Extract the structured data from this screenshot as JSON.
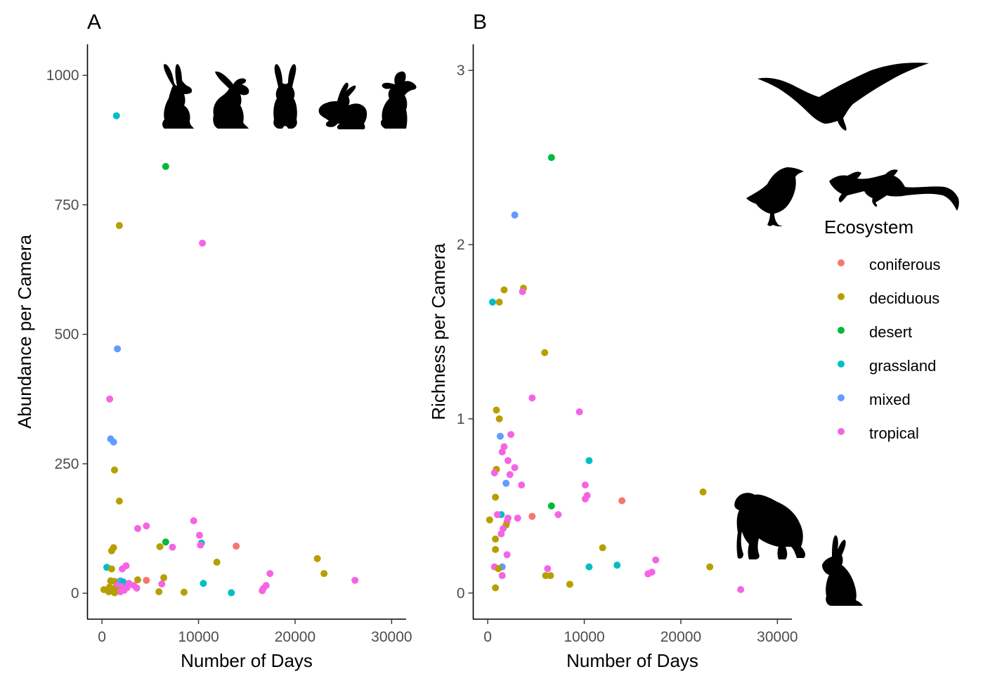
{
  "colors": {
    "coniferous": "#F8766D",
    "deciduous": "#B79F00",
    "desert": "#00BA38",
    "grassland": "#00BFC4",
    "mixed": "#619CFF",
    "tropical": "#F564E3"
  },
  "legend": {
    "title": "Ecosystem",
    "items": [
      "coniferous",
      "deciduous",
      "desert",
      "grassland",
      "mixed",
      "tropical"
    ]
  },
  "icons": {
    "panel_a": [
      "rabbit-icon",
      "rabbit-icon",
      "rabbit-icon",
      "rabbit-icon",
      "rabbit-icon"
    ],
    "panel_b": [
      "eagle-icon",
      "songbird-icon",
      "lizard-icon",
      "gorilla-icon",
      "rabbit-icon"
    ]
  },
  "chart_data": [
    {
      "type": "scatter",
      "panel": "A",
      "xlabel": "Number of Days",
      "ylabel": "Abundance per Camera",
      "xlim": [
        -1500,
        31500
      ],
      "ylim": [
        -50,
        1060
      ],
      "xticks": [
        0,
        10000,
        20000,
        30000
      ],
      "xtick_labels": [
        "0",
        "10000",
        "20000",
        "30000"
      ],
      "yticks": [
        0,
        250,
        500,
        750,
        1000
      ],
      "ytick_labels": [
        "0",
        "250",
        "500",
        "750",
        "1000"
      ],
      "grid": false,
      "points": [
        {
          "x": 1500,
          "y": 922,
          "group": "grassland"
        },
        {
          "x": 6600,
          "y": 824,
          "group": "desert"
        },
        {
          "x": 1800,
          "y": 710,
          "group": "deciduous"
        },
        {
          "x": 10400,
          "y": 676,
          "group": "tropical"
        },
        {
          "x": 1600,
          "y": 472,
          "group": "mixed"
        },
        {
          "x": 800,
          "y": 375,
          "group": "tropical"
        },
        {
          "x": 900,
          "y": 298,
          "group": "mixed"
        },
        {
          "x": 1200,
          "y": 292,
          "group": "mixed"
        },
        {
          "x": 1300,
          "y": 238,
          "group": "deciduous"
        },
        {
          "x": 1800,
          "y": 178,
          "group": "deciduous"
        },
        {
          "x": 9500,
          "y": 140,
          "group": "tropical"
        },
        {
          "x": 4600,
          "y": 130,
          "group": "tropical"
        },
        {
          "x": 3700,
          "y": 125,
          "group": "tropical"
        },
        {
          "x": 10100,
          "y": 112,
          "group": "tropical"
        },
        {
          "x": 6600,
          "y": 99,
          "group": "desert"
        },
        {
          "x": 10300,
          "y": 97,
          "group": "grassland"
        },
        {
          "x": 10200,
          "y": 93,
          "group": "tropical"
        },
        {
          "x": 13900,
          "y": 91,
          "group": "coniferous"
        },
        {
          "x": 6000,
          "y": 90,
          "group": "deciduous"
        },
        {
          "x": 7300,
          "y": 89,
          "group": "tropical"
        },
        {
          "x": 1200,
          "y": 88,
          "group": "deciduous"
        },
        {
          "x": 1000,
          "y": 82,
          "group": "deciduous"
        },
        {
          "x": 22300,
          "y": 67,
          "group": "deciduous"
        },
        {
          "x": 11900,
          "y": 60,
          "group": "deciduous"
        },
        {
          "x": 2500,
          "y": 53,
          "group": "tropical"
        },
        {
          "x": 2100,
          "y": 47,
          "group": "tropical"
        },
        {
          "x": 500,
          "y": 50,
          "group": "grassland"
        },
        {
          "x": 1000,
          "y": 47,
          "group": "deciduous"
        },
        {
          "x": 17400,
          "y": 38,
          "group": "tropical"
        },
        {
          "x": 23000,
          "y": 38,
          "group": "deciduous"
        },
        {
          "x": 6400,
          "y": 30,
          "group": "deciduous"
        },
        {
          "x": 4600,
          "y": 25,
          "group": "coniferous"
        },
        {
          "x": 3700,
          "y": 26,
          "group": "deciduous"
        },
        {
          "x": 26200,
          "y": 25,
          "group": "tropical"
        },
        {
          "x": 900,
          "y": 24,
          "group": "deciduous"
        },
        {
          "x": 1300,
          "y": 23,
          "group": "deciduous"
        },
        {
          "x": 1900,
          "y": 24,
          "group": "mixed"
        },
        {
          "x": 2200,
          "y": 22,
          "group": "grassland"
        },
        {
          "x": 2800,
          "y": 19,
          "group": "tropical"
        },
        {
          "x": 10500,
          "y": 19,
          "group": "grassland"
        },
        {
          "x": 6200,
          "y": 18,
          "group": "tropical"
        },
        {
          "x": 17000,
          "y": 15,
          "group": "tropical"
        },
        {
          "x": 3300,
          "y": 15,
          "group": "tropical"
        },
        {
          "x": 2000,
          "y": 13,
          "group": "tropical"
        },
        {
          "x": 1500,
          "y": 13,
          "group": "tropical"
        },
        {
          "x": 800,
          "y": 12,
          "group": "deciduous"
        },
        {
          "x": 2600,
          "y": 11,
          "group": "tropical"
        },
        {
          "x": 3600,
          "y": 10,
          "group": "tropical"
        },
        {
          "x": 16700,
          "y": 9,
          "group": "tropical"
        },
        {
          "x": 1100,
          "y": 8,
          "group": "deciduous"
        },
        {
          "x": 16600,
          "y": 5,
          "group": "tropical"
        },
        {
          "x": 200,
          "y": 7,
          "group": "deciduous"
        },
        {
          "x": 2300,
          "y": 6,
          "group": "tropical"
        },
        {
          "x": 1600,
          "y": 5,
          "group": "deciduous"
        },
        {
          "x": 1900,
          "y": 3,
          "group": "tropical"
        },
        {
          "x": 700,
          "y": 3,
          "group": "deciduous"
        },
        {
          "x": 5900,
          "y": 3,
          "group": "deciduous"
        },
        {
          "x": 8500,
          "y": 2,
          "group": "deciduous"
        },
        {
          "x": 13400,
          "y": 1,
          "group": "grassland"
        },
        {
          "x": 1300,
          "y": 1,
          "group": "deciduous"
        }
      ]
    },
    {
      "type": "scatter",
      "panel": "B",
      "xlabel": "Number of Days",
      "ylabel": "Richness per Camera",
      "xlim": [
        -1500,
        31500
      ],
      "ylim": [
        -0.15,
        3.15
      ],
      "xticks": [
        0,
        10000,
        20000,
        30000
      ],
      "xtick_labels": [
        "0",
        "10000",
        "20000",
        "30000"
      ],
      "yticks": [
        0,
        1,
        2,
        3
      ],
      "ytick_labels": [
        "0",
        "1",
        "2",
        "3"
      ],
      "grid": false,
      "points": [
        {
          "x": 6600,
          "y": 2.5,
          "group": "desert"
        },
        {
          "x": 2800,
          "y": 2.17,
          "group": "mixed"
        },
        {
          "x": 3700,
          "y": 1.75,
          "group": "deciduous"
        },
        {
          "x": 1700,
          "y": 1.74,
          "group": "deciduous"
        },
        {
          "x": 3600,
          "y": 1.73,
          "group": "tropical"
        },
        {
          "x": 500,
          "y": 1.67,
          "group": "grassland"
        },
        {
          "x": 1200,
          "y": 1.67,
          "group": "deciduous"
        },
        {
          "x": 5900,
          "y": 1.38,
          "group": "deciduous"
        },
        {
          "x": 4600,
          "y": 1.12,
          "group": "tropical"
        },
        {
          "x": 900,
          "y": 1.05,
          "group": "deciduous"
        },
        {
          "x": 9500,
          "y": 1.04,
          "group": "tropical"
        },
        {
          "x": 1200,
          "y": 1.0,
          "group": "deciduous"
        },
        {
          "x": 2400,
          "y": 0.91,
          "group": "tropical"
        },
        {
          "x": 1300,
          "y": 0.9,
          "group": "mixed"
        },
        {
          "x": 1700,
          "y": 0.84,
          "group": "tropical"
        },
        {
          "x": 1500,
          "y": 0.81,
          "group": "tropical"
        },
        {
          "x": 10500,
          "y": 0.76,
          "group": "grassland"
        },
        {
          "x": 2100,
          "y": 0.76,
          "group": "tropical"
        },
        {
          "x": 2800,
          "y": 0.72,
          "group": "tropical"
        },
        {
          "x": 900,
          "y": 0.71,
          "group": "deciduous"
        },
        {
          "x": 700,
          "y": 0.69,
          "group": "tropical"
        },
        {
          "x": 2300,
          "y": 0.68,
          "group": "tropical"
        },
        {
          "x": 1900,
          "y": 0.63,
          "group": "mixed"
        },
        {
          "x": 3500,
          "y": 0.62,
          "group": "tropical"
        },
        {
          "x": 10100,
          "y": 0.62,
          "group": "tropical"
        },
        {
          "x": 22300,
          "y": 0.58,
          "group": "deciduous"
        },
        {
          "x": 10300,
          "y": 0.56,
          "group": "tropical"
        },
        {
          "x": 800,
          "y": 0.55,
          "group": "deciduous"
        },
        {
          "x": 10100,
          "y": 0.54,
          "group": "tropical"
        },
        {
          "x": 13900,
          "y": 0.53,
          "group": "coniferous"
        },
        {
          "x": 6600,
          "y": 0.5,
          "group": "desert"
        },
        {
          "x": 1400,
          "y": 0.45,
          "group": "grassland"
        },
        {
          "x": 7300,
          "y": 0.45,
          "group": "tropical"
        },
        {
          "x": 1000,
          "y": 0.45,
          "group": "tropical"
        },
        {
          "x": 4600,
          "y": 0.44,
          "group": "coniferous"
        },
        {
          "x": 200,
          "y": 0.42,
          "group": "deciduous"
        },
        {
          "x": 2100,
          "y": 0.43,
          "group": "tropical"
        },
        {
          "x": 3100,
          "y": 0.43,
          "group": "tropical"
        },
        {
          "x": 2000,
          "y": 0.41,
          "group": "tropical"
        },
        {
          "x": 1900,
          "y": 0.39,
          "group": "deciduous"
        },
        {
          "x": 1600,
          "y": 0.37,
          "group": "tropical"
        },
        {
          "x": 1400,
          "y": 0.34,
          "group": "tropical"
        },
        {
          "x": 800,
          "y": 0.31,
          "group": "deciduous"
        },
        {
          "x": 11900,
          "y": 0.26,
          "group": "deciduous"
        },
        {
          "x": 800,
          "y": 0.25,
          "group": "deciduous"
        },
        {
          "x": 2000,
          "y": 0.22,
          "group": "tropical"
        },
        {
          "x": 17400,
          "y": 0.19,
          "group": "tropical"
        },
        {
          "x": 13400,
          "y": 0.16,
          "group": "grassland"
        },
        {
          "x": 23000,
          "y": 0.15,
          "group": "deciduous"
        },
        {
          "x": 1500,
          "y": 0.15,
          "group": "mixed"
        },
        {
          "x": 6200,
          "y": 0.14,
          "group": "tropical"
        },
        {
          "x": 10500,
          "y": 0.15,
          "group": "grassland"
        },
        {
          "x": 700,
          "y": 0.15,
          "group": "tropical"
        },
        {
          "x": 1100,
          "y": 0.14,
          "group": "deciduous"
        },
        {
          "x": 17000,
          "y": 0.12,
          "group": "tropical"
        },
        {
          "x": 16600,
          "y": 0.11,
          "group": "tropical"
        },
        {
          "x": 6000,
          "y": 0.1,
          "group": "deciduous"
        },
        {
          "x": 6500,
          "y": 0.1,
          "group": "deciduous"
        },
        {
          "x": 1500,
          "y": 0.1,
          "group": "tropical"
        },
        {
          "x": 8500,
          "y": 0.05,
          "group": "deciduous"
        },
        {
          "x": 800,
          "y": 0.03,
          "group": "deciduous"
        },
        {
          "x": 26200,
          "y": 0.02,
          "group": "tropical"
        }
      ]
    }
  ]
}
